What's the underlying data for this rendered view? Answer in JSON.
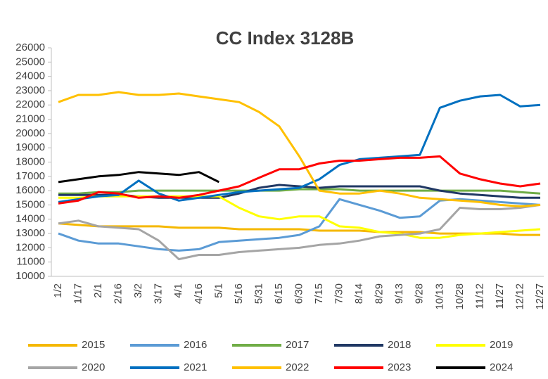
{
  "chart_data": {
    "type": "line",
    "title": "CC  Index  3128B",
    "categories": [
      "1/2",
      "1/17",
      "2/1",
      "2/16",
      "3/2",
      "3/17",
      "4/1",
      "4/16",
      "5/1",
      "5/16",
      "5/31",
      "6/15",
      "6/30",
      "7/15",
      "7/30",
      "8/14",
      "8/29",
      "9/13",
      "9/28",
      "10/13",
      "10/28",
      "11/12",
      "11/27",
      "12/12",
      "12/27"
    ],
    "ylim": [
      10000,
      26000
    ],
    "yticks": [
      10000,
      11000,
      12000,
      13000,
      14000,
      15000,
      16000,
      17000,
      18000,
      19000,
      20000,
      21000,
      22000,
      23000,
      24000,
      25000,
      26000
    ],
    "series": [
      {
        "name": "2015",
        "color": "#f5b800",
        "values": [
          13700,
          13600,
          13500,
          13500,
          13500,
          13500,
          13400,
          13400,
          13400,
          13300,
          13300,
          13300,
          13300,
          13200,
          13200,
          13200,
          13100,
          13100,
          13100,
          13000,
          13000,
          13000,
          13000,
          12900,
          12900
        ]
      },
      {
        "name": "2016",
        "color": "#5b9bd5",
        "values": [
          13000,
          12500,
          12300,
          12300,
          12100,
          11900,
          11800,
          11900,
          12400,
          12500,
          12600,
          12700,
          12900,
          13500,
          15400,
          15000,
          14600,
          14100,
          14200,
          15300,
          15400,
          15300,
          15200,
          15100,
          15000
        ]
      },
      {
        "name": "2017",
        "color": "#70ad47",
        "values": [
          15800,
          15800,
          15900,
          15900,
          16000,
          16000,
          16000,
          16000,
          16000,
          16000,
          16000,
          16000,
          16100,
          16100,
          16100,
          16000,
          16000,
          16000,
          16000,
          16000,
          16000,
          16000,
          16000,
          15900,
          15800
        ]
      },
      {
        "name": "2018",
        "color": "#203864",
        "values": [
          15700,
          15700,
          15700,
          15700,
          15600,
          15500,
          15500,
          15500,
          15500,
          15800,
          16200,
          16400,
          16300,
          16200,
          16300,
          16300,
          16300,
          16300,
          16300,
          16000,
          15800,
          15700,
          15600,
          15500,
          15500
        ]
      },
      {
        "name": "2019",
        "color": "#ffff00",
        "values": [
          15500,
          15500,
          15600,
          15600,
          15600,
          15600,
          15600,
          15600,
          15600,
          14800,
          14200,
          14000,
          14200,
          14200,
          13500,
          13400,
          13100,
          13000,
          12700,
          12700,
          12900,
          13000,
          13100,
          13200,
          13300
        ]
      },
      {
        "name": "2020",
        "color": "#a5a5a5",
        "values": [
          13700,
          13900,
          13500,
          13400,
          13300,
          12500,
          11200,
          11500,
          11500,
          11700,
          11800,
          11900,
          12000,
          12200,
          12300,
          12500,
          12800,
          12900,
          13000,
          13300,
          14800,
          14700,
          14700,
          14800,
          15000
        ]
      },
      {
        "name": "2021",
        "color": "#0070c0",
        "values": [
          15200,
          15400,
          15600,
          15700,
          16700,
          15800,
          15300,
          15500,
          15700,
          15900,
          16000,
          16100,
          16200,
          16800,
          17800,
          18200,
          18300,
          18400,
          18500,
          21800,
          22300,
          22600,
          22700,
          21900,
          22000
        ]
      },
      {
        "name": "2022",
        "color": "#ffc000",
        "values": [
          22200,
          22700,
          22700,
          22900,
          22700,
          22700,
          22800,
          22600,
          22400,
          22200,
          21500,
          20500,
          18400,
          16000,
          15800,
          15800,
          16000,
          15800,
          15500,
          15400,
          15300,
          15200,
          15000,
          14900,
          15000
        ]
      },
      {
        "name": "2023",
        "color": "#ff0000",
        "values": [
          15100,
          15300,
          15900,
          15800,
          15500,
          15600,
          15500,
          15700,
          16000,
          16300,
          16900,
          17500,
          17500,
          17900,
          18100,
          18100,
          18200,
          18300,
          18300,
          18400,
          17200,
          16800,
          16500,
          16300,
          16500
        ]
      },
      {
        "name": "2024",
        "color": "#000000",
        "values": [
          16600,
          16800,
          17000,
          17100,
          17300,
          17200,
          17100,
          17300,
          16600,
          null,
          null,
          null,
          null,
          null,
          null,
          null,
          null,
          null,
          null,
          null,
          null,
          null,
          null,
          null,
          null
        ]
      }
    ]
  }
}
